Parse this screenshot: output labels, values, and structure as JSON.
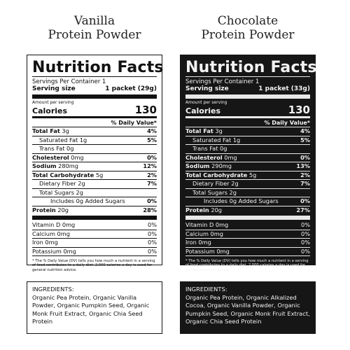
{
  "products": [
    {
      "heading_line1": "Vanilla",
      "heading_line2": "Protein Powder",
      "title": "Nutrition Facts",
      "servings": "Servings Per Container 1",
      "serving_size_label": "Serving size",
      "serving_size_value": "1 packet (29g)",
      "amount_per_serving": "Amount per serving",
      "calories_label": "Calories",
      "calories_value": "130",
      "dv_header": "% Daily Value*",
      "rows": [
        {
          "label_bold": "Total Fat",
          "label_rest": " 3g",
          "pct": "4%"
        },
        {
          "label_bold": "",
          "label_rest": "Saturated Fat 1g",
          "pct": "5%"
        },
        {
          "label_bold": "",
          "label_rest": "Trans Fat 0g",
          "pct": ""
        },
        {
          "label_bold": "Cholesterol",
          "label_rest": " 0mg",
          "pct": "0%"
        },
        {
          "label_bold": "Sodium",
          "label_rest": " 280mg",
          "pct": "12%"
        },
        {
          "label_bold": "Total Carbohydrate",
          "label_rest": " 5g",
          "pct": "2%"
        },
        {
          "label_bold": "",
          "label_rest": "Dietary Fiber 2g",
          "pct": "7%"
        },
        {
          "label_bold": "",
          "label_rest": "Total Sugars 2g",
          "pct": ""
        },
        {
          "label_bold": "",
          "label_rest": "Includes 0g Added Sugars",
          "pct": "0%"
        },
        {
          "label_bold": "Protein",
          "label_rest": " 20g",
          "pct": "28%"
        },
        {
          "label_bold": "",
          "label_rest": "Vitamin D 0mg",
          "pct": "0%"
        },
        {
          "label_bold": "",
          "label_rest": "Calcium 0mg",
          "pct": "0%"
        },
        {
          "label_bold": "",
          "label_rest": "Iron 0mg",
          "pct": "0%"
        },
        {
          "label_bold": "",
          "label_rest": "Potassium 0mg",
          "pct": "0%"
        }
      ],
      "footnote": "* The % Daily Value (DV) tells you how much a nutrient in a serving of food contributes to a daily diet. 2,000 calories a day is used for general nutrition advice.",
      "ingredients_label": "INGREDIENTS:",
      "ingredients_text": "Organic Pea Protein, Organic Vanilla Powder, Organic Pumpkin Seed, Organic Monk Fruit Extract, Organic Chia Seed Protein"
    },
    {
      "heading_line1": "Chocolate",
      "heading_line2": "Protein Powder",
      "title": "Nutrition Facts",
      "servings": "Servings Per Container 1",
      "serving_size_label": "Serving size",
      "serving_size_value": "1 packet (33g)",
      "amount_per_serving": "Amount per serving",
      "calories_label": "Calories",
      "calories_value": "130",
      "dv_header": "% Daily Value*",
      "rows": [
        {
          "label_bold": "Total Fat",
          "label_rest": " 3g",
          "pct": "4%"
        },
        {
          "label_bold": "",
          "label_rest": "Saturated Fat 1g",
          "pct": "5%"
        },
        {
          "label_bold": "",
          "label_rest": "Trans Fat 0g",
          "pct": ""
        },
        {
          "label_bold": "Cholesterol",
          "label_rest": " 0mg",
          "pct": "0%"
        },
        {
          "label_bold": "Sodium",
          "label_rest": " 290mg",
          "pct": "13%"
        },
        {
          "label_bold": "Total Carbohydrate",
          "label_rest": " 5g",
          "pct": "2%"
        },
        {
          "label_bold": "",
          "label_rest": "Dietary Fiber 2g",
          "pct": "7%"
        },
        {
          "label_bold": "",
          "label_rest": "Total Sugars 2g",
          "pct": ""
        },
        {
          "label_bold": "",
          "label_rest": "Includes 0g Added Sugars",
          "pct": "0%"
        },
        {
          "label_bold": "Protein",
          "label_rest": " 20g",
          "pct": "27%"
        },
        {
          "label_bold": "",
          "label_rest": "Vitamin D 0mg",
          "pct": "0%"
        },
        {
          "label_bold": "",
          "label_rest": "Calcium 0mg",
          "pct": "0%"
        },
        {
          "label_bold": "",
          "label_rest": "Iron 0mg",
          "pct": "0%"
        },
        {
          "label_bold": "",
          "label_rest": "Potassium 0mg",
          "pct": "0%"
        }
      ],
      "footnote": "* The % Daily Value (DV) tells you how much a nutrient in a serving of food contributes to a daily diet. 2,000 calories a day is used for general nutrition advice.",
      "ingredients_label": "INGREDIENTS:",
      "ingredients_text": "Organic Pea Protein, Organic Alkalized Cocoa, Organic Vanilla Powder, Organic Pumpkin Seed, Organic Monk Fruit Extract, Organic Chia Seed Protein"
    }
  ],
  "colors": {
    "background": "#ffffff",
    "ink": "#111111",
    "dark_panel": "#161616",
    "dark_panel_text": "#f2f2f2"
  }
}
